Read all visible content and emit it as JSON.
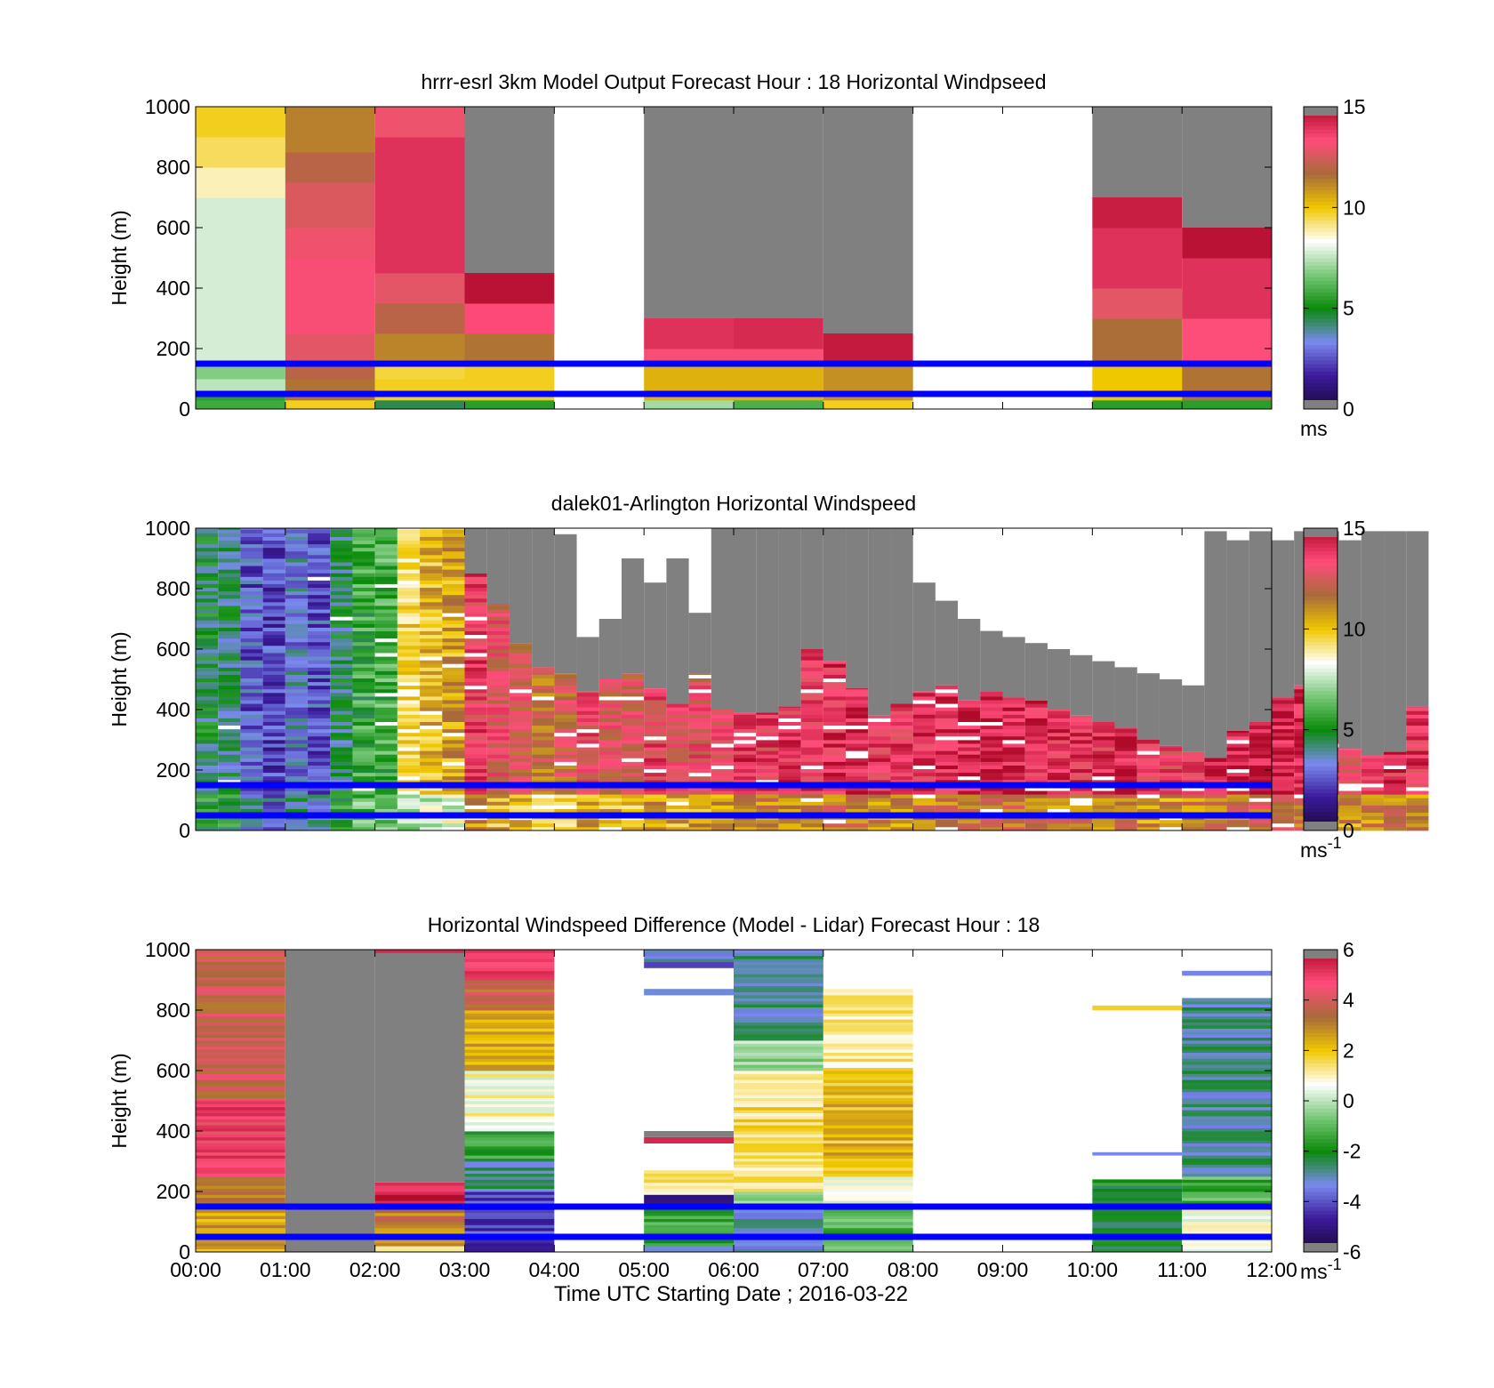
{
  "figure": {
    "xlabel": "Time UTC  Starting Date ; 2016-03-22"
  },
  "colors": {
    "no_data": "#808080",
    "boundary_lines": "#0000ff",
    "speed_colormap": [
      "#1a0a3a",
      "#3a1a9a",
      "#7a8aee",
      "#0a8a0a",
      "#78c878",
      "#ffffff",
      "#f0c800",
      "#a86a3a",
      "#ff4c7a",
      "#b00a2a"
    ],
    "diff_colormap": [
      "#1a0a3a",
      "#3a1a9a",
      "#7a8aee",
      "#0a8a0a",
      "#78c878",
      "#ffffff",
      "#f0c800",
      "#a86a3a",
      "#ff4c7a",
      "#b00a2a"
    ]
  },
  "chart_data": [
    {
      "id": "model",
      "type": "heatmap",
      "title": "hrrr-esrl 3km Model Output   Forecast Hour : 18 Horizontal Windpseed",
      "ylabel": "Height (m)",
      "ylim": [
        0,
        1000
      ],
      "yticks": [
        "0",
        "200",
        "400",
        "600",
        "800",
        "1000"
      ],
      "xticks": [
        "00:00",
        "01:00",
        "02:00",
        "03:00",
        "04:00",
        "05:00",
        "06:00",
        "07:00",
        "08:00",
        "09:00",
        "10:00",
        "11:00",
        "12:00"
      ],
      "show_xtick_labels": false,
      "colorbar": {
        "range": [
          0,
          15
        ],
        "ticks": [
          "0",
          "5",
          "10",
          "15"
        ],
        "unit": "ms",
        "unit_sup": "",
        "colormap": "speed"
      },
      "boundary_lines_m": [
        150,
        50
      ],
      "hours": [
        {
          "start": 0,
          "no_data_above": null,
          "blocks": [
            [
              0,
              30,
              5.8
            ],
            [
              30,
              60,
              5.5
            ],
            [
              60,
              100,
              7.5
            ],
            [
              100,
              150,
              6.8
            ],
            [
              150,
              700,
              7.8
            ],
            [
              700,
              800,
              8.8
            ],
            [
              800,
              900,
              9.4
            ],
            [
              900,
              1000,
              9.8
            ]
          ]
        },
        {
          "start": 1,
          "no_data_above": null,
          "blocks": [
            [
              0,
              30,
              9.8
            ],
            [
              30,
              100,
              11.5
            ],
            [
              100,
              150,
              12
            ],
            [
              150,
              250,
              12.8
            ],
            [
              250,
              500,
              13.2
            ],
            [
              500,
              600,
              13
            ],
            [
              600,
              750,
              12.6
            ],
            [
              750,
              850,
              12
            ],
            [
              850,
              1000,
              11.3
            ]
          ]
        },
        {
          "start": 2,
          "no_data_above": null,
          "blocks": [
            [
              0,
              30,
              4.5
            ],
            [
              30,
              100,
              9.8
            ],
            [
              100,
              150,
              9.6
            ],
            [
              150,
              250,
              11.2
            ],
            [
              250,
              350,
              12
            ],
            [
              350,
              450,
              12.8
            ],
            [
              450,
              900,
              14
            ],
            [
              900,
              1000,
              13
            ]
          ]
        },
        {
          "start": 3,
          "no_data_above": 450,
          "blocks": [
            [
              0,
              30,
              5.5
            ],
            [
              30,
              150,
              9.8
            ],
            [
              150,
              250,
              11.5
            ],
            [
              250,
              350,
              13.4
            ],
            [
              350,
              450,
              14.8
            ]
          ]
        },
        {
          "start": 5,
          "no_data_above": 300,
          "blocks": [
            [
              0,
              30,
              7.2
            ],
            [
              30,
              150,
              10.4
            ],
            [
              150,
              200,
              13.2
            ],
            [
              200,
              300,
              14
            ]
          ]
        },
        {
          "start": 6,
          "no_data_above": 300,
          "blocks": [
            [
              0,
              30,
              6
            ],
            [
              30,
              150,
              10.4
            ],
            [
              150,
              200,
              13.2
            ],
            [
              200,
              300,
              14.2
            ]
          ]
        },
        {
          "start": 7,
          "no_data_above": 250,
          "blocks": [
            [
              0,
              30,
              9.8
            ],
            [
              30,
              150,
              11
            ],
            [
              150,
              250,
              14.6
            ]
          ]
        },
        {
          "start": 10,
          "no_data_above": 700,
          "blocks": [
            [
              0,
              30,
              5.5
            ],
            [
              30,
              150,
              10
            ],
            [
              150,
              300,
              11.6
            ],
            [
              300,
              400,
              12.8
            ],
            [
              400,
              600,
              14
            ],
            [
              600,
              700,
              14.5
            ]
          ]
        },
        {
          "start": 11,
          "no_data_above": 600,
          "blocks": [
            [
              0,
              30,
              5.5
            ],
            [
              30,
              150,
              11.5
            ],
            [
              150,
              300,
              13.3
            ],
            [
              300,
              500,
              14
            ],
            [
              500,
              600,
              14.8
            ]
          ]
        }
      ]
    },
    {
      "id": "lidar",
      "type": "heatmap",
      "title": "dalek01-Arlington  Horizontal Windspeed",
      "ylabel": "Height (m)",
      "ylim": [
        0,
        1000
      ],
      "yticks": [
        "0",
        "200",
        "400",
        "600",
        "800",
        "1000"
      ],
      "xticks": [
        "00:00",
        "01:00",
        "02:00",
        "03:00",
        "04:00",
        "05:00",
        "06:00",
        "07:00",
        "08:00",
        "09:00",
        "10:00",
        "11:00",
        "12:00"
      ],
      "show_xtick_labels": false,
      "colorbar": {
        "range": [
          0,
          15
        ],
        "ticks": [
          "0",
          "5",
          "10",
          "15"
        ],
        "unit": "ms",
        "unit_sup": "-1",
        "colormap": "speed"
      },
      "boundary_lines_m": [
        150,
        50
      ],
      "column_minutes": 15,
      "columns": [
        {
          "base": 4.6,
          "top": 1000,
          "valid_top": 1000
        },
        {
          "base": 4.2,
          "top": 1000,
          "valid_top": 1000
        },
        {
          "base": 2.7,
          "top": 1000,
          "valid_top": 1000
        },
        {
          "base": 2.3,
          "top": 1000,
          "valid_top": 1000
        },
        {
          "base": 3.3,
          "top": 1000,
          "valid_top": 1000
        },
        {
          "base": 2.6,
          "top": 1000,
          "valid_top": 1000
        },
        {
          "base": 4.4,
          "top": 1000,
          "valid_top": 1000
        },
        {
          "base": 5.6,
          "top": 1000,
          "valid_top": 1000
        },
        {
          "base": 5.8,
          "top": 1000,
          "valid_top": 1000
        },
        {
          "base": 9.4,
          "top": 1000,
          "valid_top": 1000
        },
        {
          "base": 10.2,
          "top": 1000,
          "valid_top": 1000
        },
        {
          "base": 10.6,
          "top": 1000,
          "valid_top": 1000
        },
        {
          "base": 13.6,
          "top": 1000,
          "valid_top": 850
        },
        {
          "base": 12.8,
          "top": 1000,
          "valid_top": 750
        },
        {
          "base": 12.5,
          "top": 1000,
          "valid_top": 620
        },
        {
          "base": 11.8,
          "top": 1000,
          "valid_top": 540
        },
        {
          "base": 12.2,
          "top": 980,
          "valid_top": 520
        },
        {
          "base": 13.2,
          "top": 640,
          "valid_top": 460
        },
        {
          "base": 12.6,
          "top": 700,
          "valid_top": 500
        },
        {
          "base": 12.6,
          "top": 900,
          "valid_top": 520
        },
        {
          "base": 13.4,
          "top": 820,
          "valid_top": 470
        },
        {
          "base": 13,
          "top": 900,
          "valid_top": 420
        },
        {
          "base": 13,
          "top": 720,
          "valid_top": 520
        },
        {
          "base": 13.4,
          "top": 1000,
          "valid_top": 400
        },
        {
          "base": 13.8,
          "top": 1000,
          "valid_top": 390
        },
        {
          "base": 13.6,
          "top": 1000,
          "valid_top": 390
        },
        {
          "base": 13.8,
          "top": 1000,
          "valid_top": 410
        },
        {
          "base": 13.8,
          "top": 1000,
          "valid_top": 600
        },
        {
          "base": 14,
          "top": 1000,
          "valid_top": 560
        },
        {
          "base": 14.2,
          "top": 1000,
          "valid_top": 470
        },
        {
          "base": 13.8,
          "top": 1000,
          "valid_top": 380
        },
        {
          "base": 13.6,
          "top": 1000,
          "valid_top": 420
        },
        {
          "base": 13.9,
          "top": 820,
          "valid_top": 460
        },
        {
          "base": 14.1,
          "top": 760,
          "valid_top": 480
        },
        {
          "base": 14.3,
          "top": 700,
          "valid_top": 430
        },
        {
          "base": 14.5,
          "top": 660,
          "valid_top": 460
        },
        {
          "base": 14.3,
          "top": 640,
          "valid_top": 440
        },
        {
          "base": 14.1,
          "top": 620,
          "valid_top": 430
        },
        {
          "base": 13.9,
          "top": 600,
          "valid_top": 400
        },
        {
          "base": 13.7,
          "top": 580,
          "valid_top": 380
        },
        {
          "base": 13.9,
          "top": 560,
          "valid_top": 360
        },
        {
          "base": 14.1,
          "top": 540,
          "valid_top": 340
        },
        {
          "base": 13.6,
          "top": 520,
          "valid_top": 300
        },
        {
          "base": 13.4,
          "top": 500,
          "valid_top": 280
        },
        {
          "base": 13.8,
          "top": 480,
          "valid_top": 260
        },
        {
          "base": 14.2,
          "top": 990,
          "valid_top": 240
        },
        {
          "base": 14.4,
          "top": 960,
          "valid_top": 330
        },
        {
          "base": 14.6,
          "top": 990,
          "valid_top": 360
        },
        {
          "base": 14.4,
          "top": 960,
          "valid_top": 440
        },
        {
          "base": 14.2,
          "top": 990,
          "valid_top": 480
        },
        {
          "base": 13.6,
          "top": 990,
          "valid_top": 300
        },
        {
          "base": 13.4,
          "top": 960,
          "valid_top": 270
        },
        {
          "base": 13.8,
          "top": 990,
          "valid_top": 250
        },
        {
          "base": 14,
          "top": 990,
          "valid_top": 260
        },
        {
          "base": 13.8,
          "top": 990,
          "valid_top": 410
        },
        {
          "base": null,
          "top": 0,
          "valid_top": 0
        }
      ]
    },
    {
      "id": "difference",
      "type": "heatmap",
      "title": "Horizontal Windspeed Difference (Model - Lidar) Forecast Hour : 18",
      "ylabel": "Height (m)",
      "ylim": [
        0,
        1000
      ],
      "yticks": [
        "0",
        "200",
        "400",
        "600",
        "800",
        "1000"
      ],
      "xticks": [
        "00:00",
        "01:00",
        "02:00",
        "03:00",
        "04:00",
        "05:00",
        "06:00",
        "07:00",
        "08:00",
        "09:00",
        "10:00",
        "11:00",
        "12:00"
      ],
      "show_xtick_labels": true,
      "colorbar": {
        "range": [
          -6,
          6
        ],
        "ticks": [
          "-6",
          "-4",
          "-2",
          "0",
          "2",
          "4",
          "6"
        ],
        "unit": "ms",
        "unit_sup": "-1",
        "colormap": "diff"
      },
      "boundary_lines_m": [
        150,
        50
      ],
      "hours": [
        {
          "start": 0,
          "segments": [
            [
              0,
              100,
              2.6
            ],
            [
              100,
              150,
              2.2
            ],
            [
              150,
              250,
              3.2
            ],
            [
              250,
              500,
              4.8
            ],
            [
              500,
              1000,
              3.8
            ]
          ]
        },
        {
          "start": 1,
          "segments": [
            [
              0,
              1000,
              "nodata"
            ]
          ]
        },
        {
          "start": 2,
          "segments": [
            [
              0,
              20,
              1.2
            ],
            [
              20,
              100,
              2.6
            ],
            [
              100,
              150,
              3.2
            ],
            [
              150,
              230,
              5.6
            ],
            [
              230,
              990,
              "nodata"
            ],
            [
              990,
              1000,
              5.4
            ]
          ]
        },
        {
          "start": 3,
          "segments": [
            [
              0,
              150,
              -4.2
            ],
            [
              150,
              200,
              -4
            ],
            [
              200,
              300,
              -2.8
            ],
            [
              300,
              400,
              -1.6
            ],
            [
              400,
              600,
              0.8
            ],
            [
              600,
              800,
              2.4
            ],
            [
              800,
              900,
              3.6
            ],
            [
              900,
              1000,
              4.8
            ]
          ]
        },
        {
          "start": 5,
          "segments": [
            [
              0,
              20,
              -3.2
            ],
            [
              20,
              150,
              -1.5
            ],
            [
              150,
              190,
              -4.6
            ],
            [
              190,
              270,
              1.2
            ],
            [
              360,
              380,
              5.4
            ],
            [
              380,
              400,
              "nodata"
            ],
            [
              850,
              870,
              -3.2
            ],
            [
              940,
              960,
              -4.2
            ],
            [
              960,
              1000,
              -3
            ]
          ]
        },
        {
          "start": 6,
          "segments": [
            [
              0,
              150,
              -3.2
            ],
            [
              150,
              200,
              -0.6
            ],
            [
              200,
              600,
              1.5
            ],
            [
              600,
              700,
              -0.4
            ],
            [
              700,
              1000,
              -2.8
            ]
          ]
        },
        {
          "start": 7,
          "segments": [
            [
              0,
              150,
              -1.2
            ],
            [
              150,
              250,
              0.8
            ],
            [
              250,
              600,
              2.2
            ],
            [
              600,
              870,
              1.2
            ]
          ]
        },
        {
          "start": 10,
          "segments": [
            [
              0,
              240,
              -2
            ],
            [
              320,
              330,
              -3.3
            ],
            [
              800,
              815,
              1.8
            ]
          ]
        },
        {
          "start": 11,
          "segments": [
            [
              0,
              150,
              0.6
            ],
            [
              150,
              250,
              -1.2
            ],
            [
              250,
              840,
              -2.8
            ],
            [
              915,
              930,
              -3.4
            ]
          ]
        }
      ]
    }
  ]
}
